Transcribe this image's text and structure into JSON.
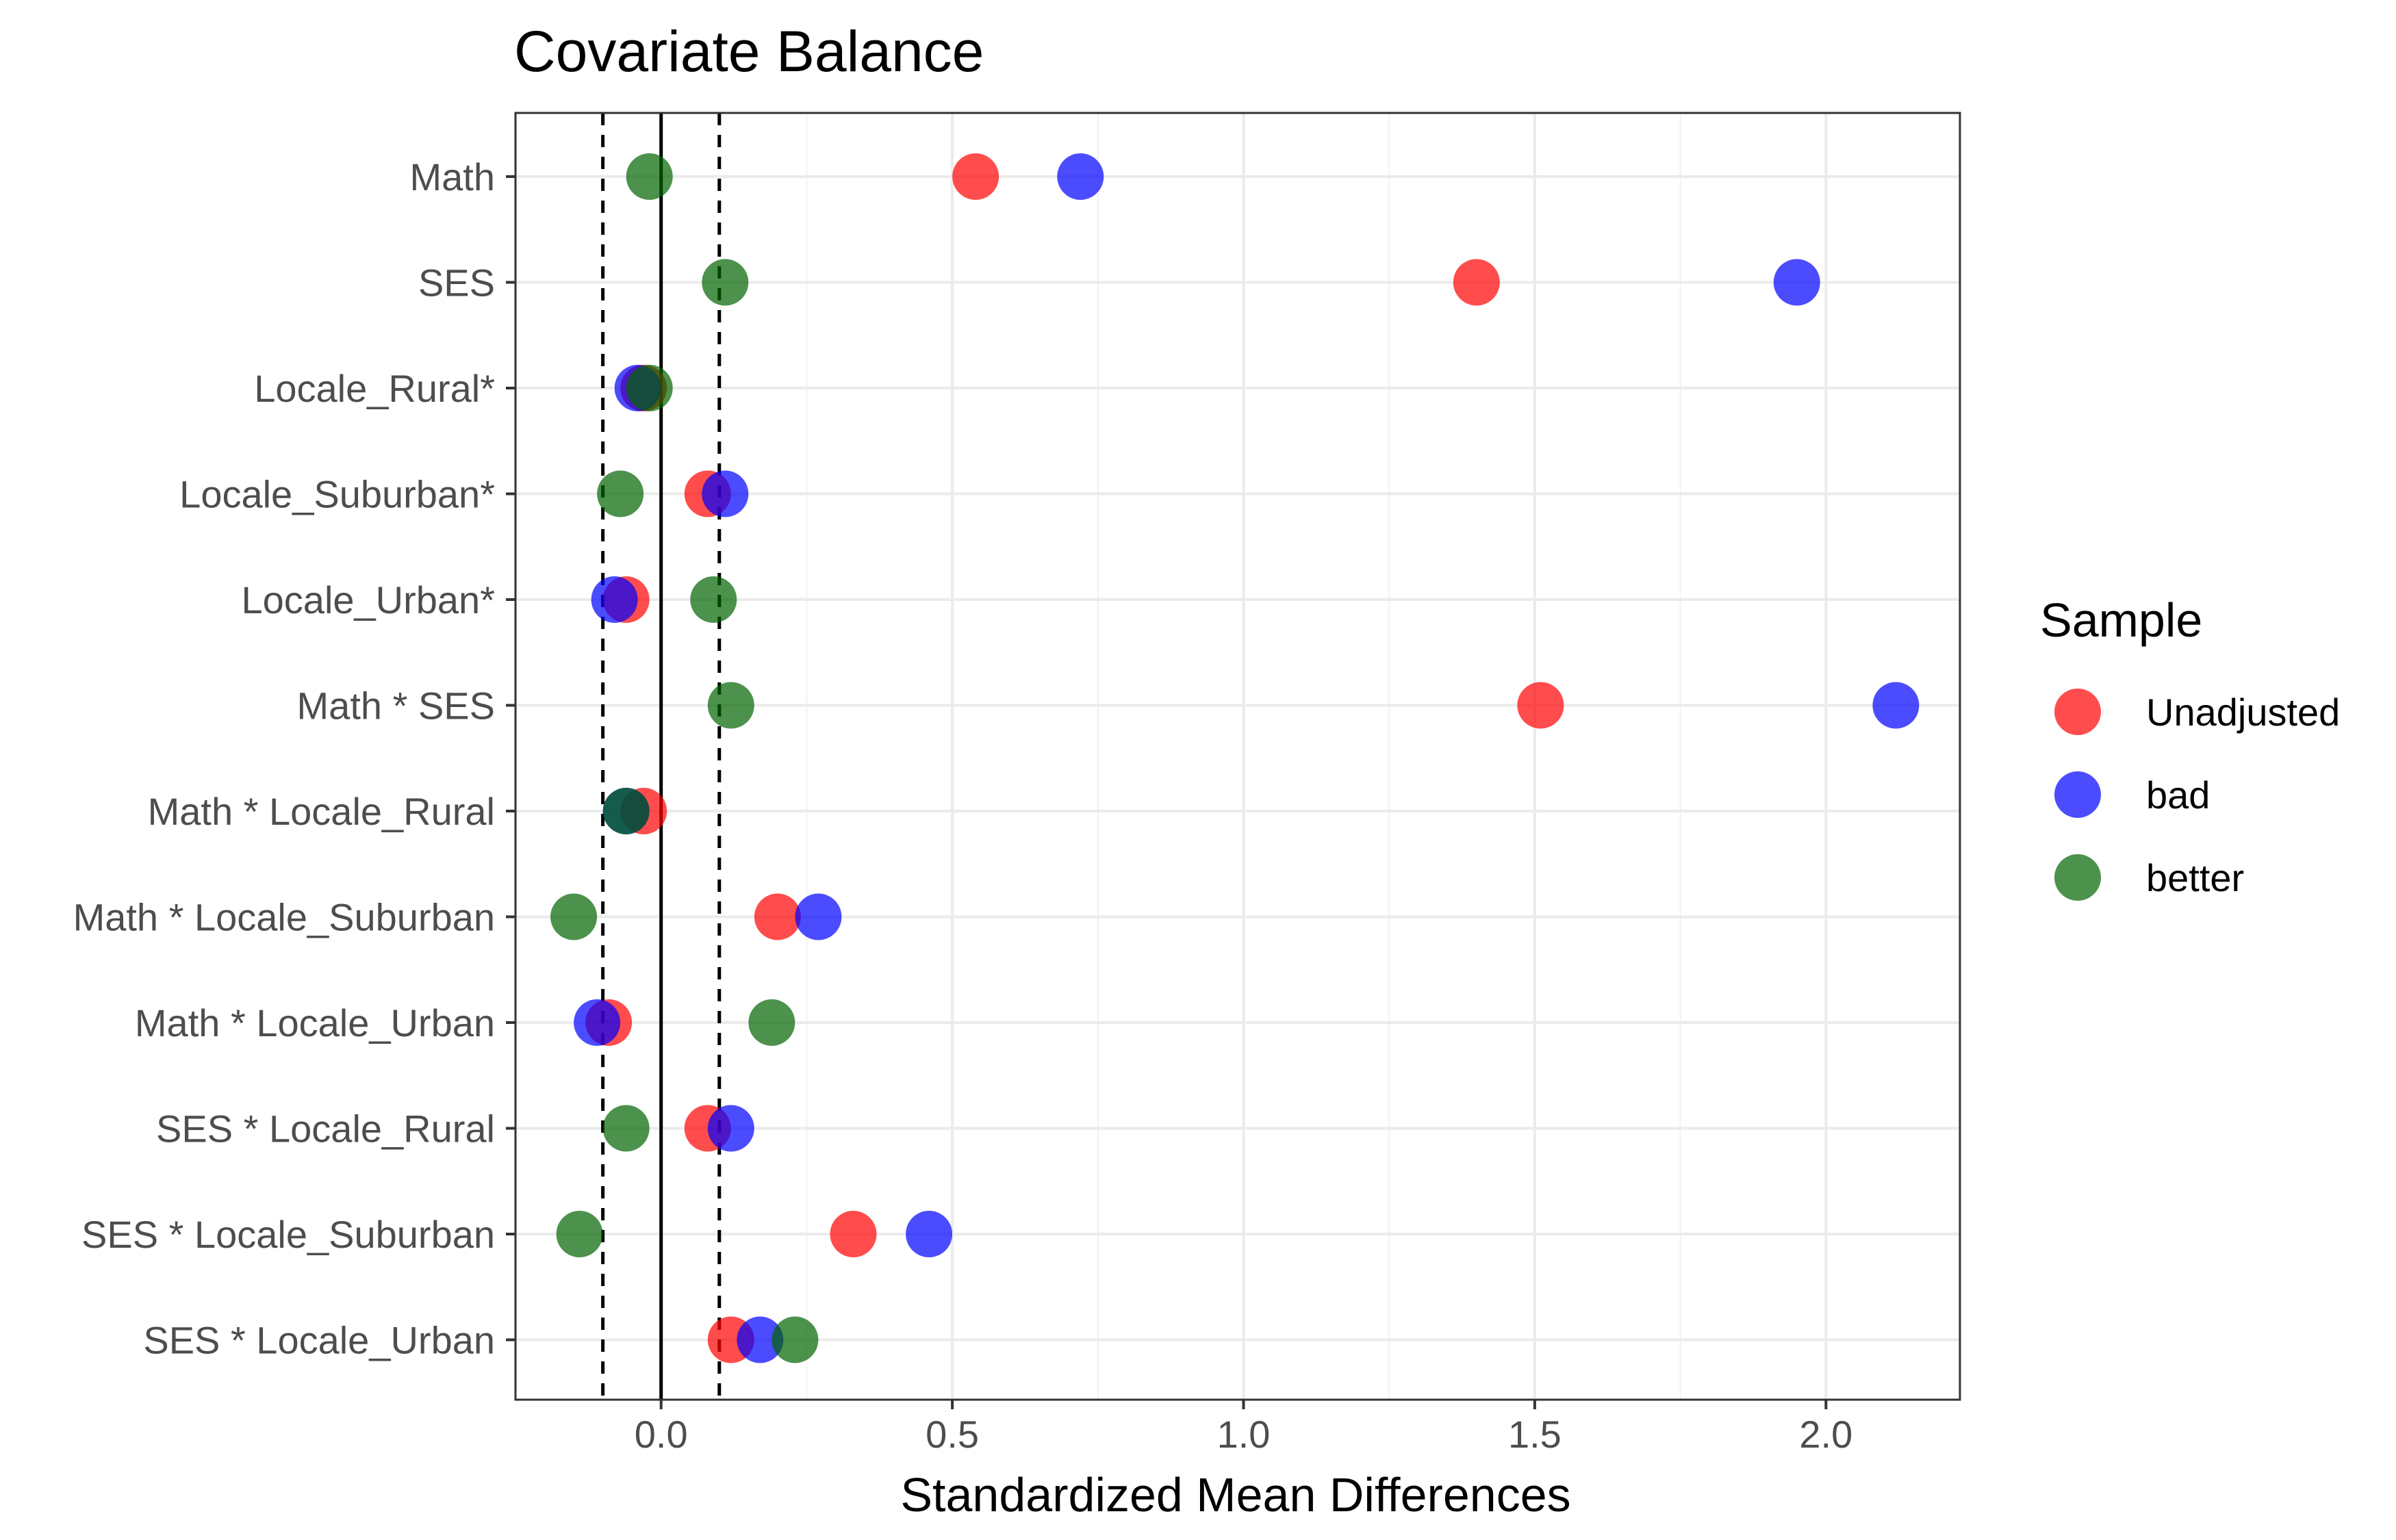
{
  "chart_data": {
    "type": "scatter",
    "title": "Covariate Balance",
    "xlabel": "Standardized Mean Differences",
    "ylabel": "",
    "xlim": [
      -0.25,
      2.23
    ],
    "x_ticks": [
      0.0,
      0.5,
      1.0,
      1.5,
      2.0
    ],
    "x_tick_labels": [
      "0.0",
      "0.5",
      "1.0",
      "1.5",
      "2.0"
    ],
    "grid": true,
    "reference_lines": [
      {
        "x": 0,
        "style": "solid"
      },
      {
        "x": -0.1,
        "style": "dashed"
      },
      {
        "x": 0.1,
        "style": "dashed"
      }
    ],
    "categories": [
      "Math",
      "SES",
      "Locale_Rural*",
      "Locale_Suburban*",
      "Locale_Urban*",
      "Math * SES",
      "Math * Locale_Rural",
      "Math * Locale_Suburban",
      "Math * Locale_Urban",
      "SES * Locale_Rural",
      "SES * Locale_Suburban",
      "SES * Locale_Urban"
    ],
    "legend": {
      "title": "Sample",
      "position": "right"
    },
    "series": [
      {
        "name": "Unadjusted",
        "color": "#ff0000",
        "values": [
          0.54,
          1.4,
          -0.03,
          0.08,
          -0.06,
          1.51,
          -0.03,
          0.2,
          -0.09,
          0.08,
          0.33,
          0.12
        ]
      },
      {
        "name": "bad",
        "color": "#0000ff",
        "values": [
          0.72,
          1.95,
          -0.04,
          0.11,
          -0.08,
          2.12,
          -0.06,
          0.27,
          -0.11,
          0.12,
          0.46,
          0.17
        ]
      },
      {
        "name": "better",
        "color": "#006400",
        "values": [
          -0.02,
          0.11,
          -0.02,
          -0.07,
          0.09,
          0.12,
          -0.06,
          -0.15,
          0.19,
          -0.06,
          -0.14,
          0.23
        ]
      }
    ]
  }
}
